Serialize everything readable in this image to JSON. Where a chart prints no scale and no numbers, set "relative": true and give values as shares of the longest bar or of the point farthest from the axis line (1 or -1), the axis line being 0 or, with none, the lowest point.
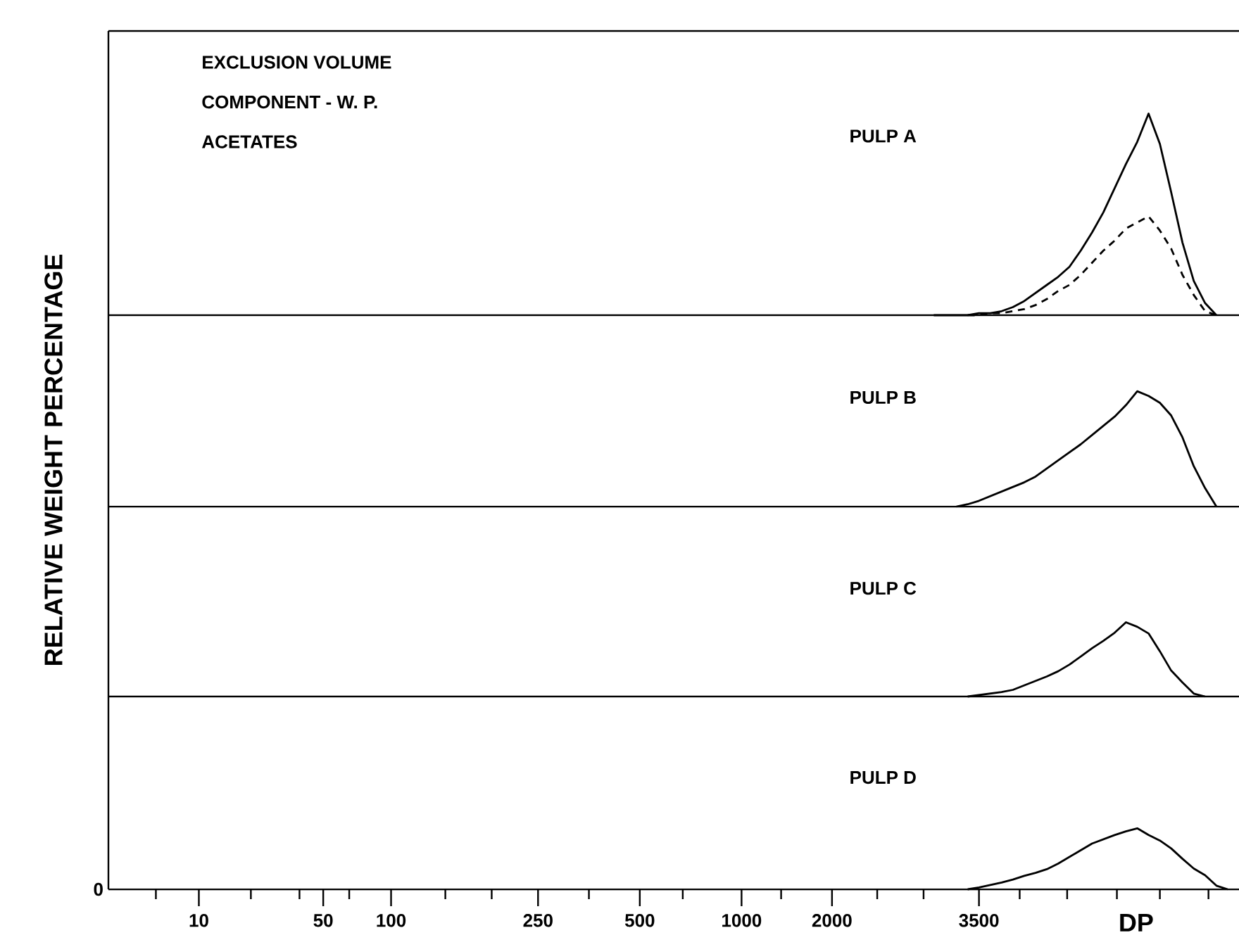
{
  "chart_data": [
    {
      "type": "line",
      "relative": true,
      "ylabel": "RELATIVE WEIGHT PERCENTAGE",
      "tick_labels": false,
      "annotations": [
        "EXCLUSION VOLUME",
        "COMPONENT - W. P.",
        "ACETATES",
        "PULP A"
      ],
      "categories": [
        null,
        null,
        null,
        null,
        null,
        null,
        null,
        null,
        null,
        null,
        null,
        null,
        null,
        null,
        null,
        null,
        null,
        null,
        null,
        null,
        null,
        null,
        null,
        null,
        null,
        null,
        null,
        null,
        null,
        null,
        null,
        null,
        null,
        null,
        null,
        null,
        null,
        null,
        null,
        null,
        null,
        null,
        null,
        null,
        null,
        null,
        null,
        null,
        null,
        null,
        null,
        null,
        null,
        null,
        null,
        null,
        null,
        null,
        null,
        null,
        null,
        null,
        null,
        null,
        null,
        null,
        null,
        null,
        null,
        null,
        null,
        null,
        null,
        null,
        null,
        null,
        null,
        null,
        null,
        null,
        null,
        null,
        null,
        null,
        null,
        null,
        null,
        null,
        null,
        null,
        null,
        null,
        null,
        null,
        null,
        null,
        null,
        null,
        null,
        null
      ],
      "series": [
        {
          "color": "#000000",
          "line_style": "solid",
          "values": [
            null,
            null,
            null,
            null,
            null,
            null,
            null,
            null,
            null,
            null,
            null,
            null,
            null,
            null,
            null,
            null,
            null,
            null,
            null,
            null,
            null,
            null,
            null,
            null,
            null,
            null,
            null,
            null,
            null,
            null,
            null,
            null,
            null,
            null,
            null,
            null,
            null,
            null,
            null,
            null,
            null,
            null,
            null,
            null,
            null,
            null,
            null,
            null,
            null,
            null,
            null,
            null,
            null,
            null,
            null,
            null,
            null,
            null,
            null,
            null,
            null,
            null,
            null,
            null,
            null,
            null,
            null,
            null,
            null,
            null,
            null,
            null,
            null,
            0,
            0,
            0,
            0,
            0.01,
            0.01,
            0.02,
            0.04,
            0.07,
            0.11,
            0.15,
            0.19,
            0.24,
            0.32,
            0.41,
            0.51,
            0.63,
            0.75,
            0.86,
            1.0,
            0.85,
            0.61,
            0.36,
            0.17,
            0.06,
            0,
            null
          ]
        },
        {
          "color": "#000000",
          "line_style": "dashed",
          "values": [
            null,
            null,
            null,
            null,
            null,
            null,
            null,
            null,
            null,
            null,
            null,
            null,
            null,
            null,
            null,
            null,
            null,
            null,
            null,
            null,
            null,
            null,
            null,
            null,
            null,
            null,
            null,
            null,
            null,
            null,
            null,
            null,
            null,
            null,
            null,
            null,
            null,
            null,
            null,
            null,
            null,
            null,
            null,
            null,
            null,
            null,
            null,
            null,
            null,
            null,
            null,
            null,
            null,
            null,
            null,
            null,
            null,
            null,
            null,
            null,
            null,
            null,
            null,
            null,
            null,
            null,
            null,
            null,
            null,
            null,
            null,
            null,
            null,
            null,
            null,
            null,
            0,
            0,
            0.01,
            0.01,
            0.02,
            0.03,
            0.05,
            0.08,
            0.12,
            0.15,
            0.2,
            0.26,
            0.32,
            0.37,
            0.43,
            0.46,
            0.49,
            0.42,
            0.33,
            0.2,
            0.1,
            0.02,
            0,
            null
          ]
        }
      ]
    },
    {
      "type": "line",
      "relative": true,
      "tick_labels": false,
      "annotations": [
        "PULP B"
      ],
      "categories": [
        null,
        null,
        null,
        null,
        null,
        null,
        null,
        null,
        null,
        null,
        null,
        null,
        null,
        null,
        null,
        null,
        null,
        null,
        null,
        null,
        null,
        null,
        null,
        null,
        null,
        null,
        null,
        null,
        null,
        null,
        null,
        null,
        null,
        null,
        null,
        null,
        null,
        null,
        null,
        null,
        null,
        null,
        null,
        null,
        null,
        null,
        null,
        null,
        null,
        null,
        null,
        null,
        null,
        null,
        null,
        null,
        null,
        null,
        null,
        null,
        null,
        null,
        null,
        null,
        null,
        null,
        null,
        null,
        null,
        null,
        null,
        null,
        null,
        null,
        null,
        null,
        null,
        null,
        null,
        null,
        null,
        null,
        null,
        null,
        null,
        null,
        null,
        null,
        null,
        null,
        null,
        null,
        null,
        null,
        null,
        null,
        null,
        null,
        null,
        null
      ],
      "series": [
        {
          "color": "#000000",
          "line_style": "solid",
          "values": [
            null,
            null,
            null,
            null,
            null,
            null,
            null,
            null,
            null,
            null,
            null,
            null,
            null,
            null,
            null,
            null,
            null,
            null,
            null,
            null,
            null,
            null,
            null,
            null,
            null,
            null,
            null,
            null,
            null,
            null,
            null,
            null,
            null,
            null,
            null,
            null,
            null,
            null,
            null,
            null,
            null,
            null,
            null,
            null,
            null,
            null,
            null,
            null,
            null,
            null,
            null,
            null,
            null,
            null,
            null,
            null,
            null,
            null,
            null,
            null,
            null,
            null,
            null,
            null,
            null,
            null,
            null,
            null,
            null,
            null,
            null,
            null,
            null,
            null,
            null,
            0,
            0.02,
            0.05,
            0.09,
            0.13,
            0.17,
            0.21,
            0.26,
            0.33,
            0.4,
            0.47,
            0.54,
            0.62,
            0.7,
            0.78,
            0.88,
            1.0,
            0.96,
            0.9,
            0.79,
            0.6,
            0.35,
            0.16,
            0,
            null
          ]
        }
      ]
    },
    {
      "type": "line",
      "relative": true,
      "tick_labels": false,
      "annotations": [
        "PULP C"
      ],
      "categories": [
        null,
        null,
        null,
        null,
        null,
        null,
        null,
        null,
        null,
        null,
        null,
        null,
        null,
        null,
        null,
        null,
        null,
        null,
        null,
        null,
        null,
        null,
        null,
        null,
        null,
        null,
        null,
        null,
        null,
        null,
        null,
        null,
        null,
        null,
        null,
        null,
        null,
        null,
        null,
        null,
        null,
        null,
        null,
        null,
        null,
        null,
        null,
        null,
        null,
        null,
        null,
        null,
        null,
        null,
        null,
        null,
        null,
        null,
        null,
        null,
        null,
        null,
        null,
        null,
        null,
        null,
        null,
        null,
        null,
        null,
        null,
        null,
        null,
        null,
        null,
        null,
        null,
        null,
        null,
        null,
        null,
        null,
        null,
        null,
        null,
        null,
        null,
        null,
        null,
        null,
        null,
        null,
        null,
        null,
        null,
        null,
        null,
        null,
        null,
        null
      ],
      "series": [
        {
          "color": "#000000",
          "line_style": "solid",
          "values": [
            null,
            null,
            null,
            null,
            null,
            null,
            null,
            null,
            null,
            null,
            null,
            null,
            null,
            null,
            null,
            null,
            null,
            null,
            null,
            null,
            null,
            null,
            null,
            null,
            null,
            null,
            null,
            null,
            null,
            null,
            null,
            null,
            null,
            null,
            null,
            null,
            null,
            null,
            null,
            null,
            null,
            null,
            null,
            null,
            null,
            null,
            null,
            null,
            null,
            null,
            null,
            null,
            null,
            null,
            null,
            null,
            null,
            null,
            null,
            null,
            null,
            null,
            null,
            null,
            null,
            null,
            null,
            null,
            null,
            null,
            null,
            null,
            null,
            null,
            null,
            null,
            0,
            0.02,
            0.04,
            0.06,
            0.09,
            0.15,
            0.21,
            0.27,
            0.34,
            0.43,
            0.54,
            0.65,
            0.75,
            0.86,
            1.0,
            0.94,
            0.85,
            0.61,
            0.35,
            0.19,
            0.04,
            0,
            null,
            null
          ]
        }
      ]
    },
    {
      "type": "line",
      "relative": true,
      "xlabel": "DP",
      "tick_labels": "x",
      "annotations": [
        "PULP D",
        "0"
      ],
      "categories": [
        null,
        null,
        null,
        null,
        null,
        null,
        null,
        null,
        "10",
        null,
        null,
        null,
        null,
        null,
        null,
        null,
        null,
        null,
        null,
        "50",
        null,
        null,
        null,
        null,
        null,
        "100",
        null,
        null,
        null,
        null,
        null,
        null,
        null,
        null,
        null,
        null,
        null,
        null,
        "250",
        null,
        null,
        null,
        null,
        null,
        null,
        null,
        null,
        "500",
        null,
        null,
        null,
        null,
        null,
        null,
        null,
        null,
        "1000",
        null,
        null,
        null,
        null,
        null,
        null,
        null,
        "2000",
        null,
        null,
        null,
        null,
        null,
        null,
        null,
        null,
        null,
        null,
        null,
        null,
        "3500",
        null,
        null,
        null,
        null,
        null,
        null,
        null,
        null,
        null,
        null,
        null,
        null,
        null,
        null,
        null,
        null,
        null,
        null,
        null,
        null,
        null,
        null
      ],
      "series": [
        {
          "color": "#000000",
          "line_style": "solid",
          "values": [
            null,
            null,
            null,
            null,
            null,
            null,
            null,
            null,
            null,
            null,
            null,
            null,
            null,
            null,
            null,
            null,
            null,
            null,
            null,
            null,
            null,
            null,
            null,
            null,
            null,
            null,
            null,
            null,
            null,
            null,
            null,
            null,
            null,
            null,
            null,
            null,
            null,
            null,
            null,
            null,
            null,
            null,
            null,
            null,
            null,
            null,
            null,
            null,
            null,
            null,
            null,
            null,
            null,
            null,
            null,
            null,
            null,
            null,
            null,
            null,
            null,
            null,
            null,
            null,
            null,
            null,
            null,
            null,
            null,
            null,
            null,
            null,
            null,
            null,
            null,
            null,
            0,
            0.03,
            0.07,
            0.11,
            0.16,
            0.22,
            0.27,
            0.33,
            0.42,
            0.53,
            0.64,
            0.75,
            0.82,
            0.89,
            0.95,
            1.0,
            0.89,
            0.8,
            0.67,
            0.5,
            0.34,
            0.23,
            0.06,
            0
          ]
        }
      ]
    }
  ]
}
